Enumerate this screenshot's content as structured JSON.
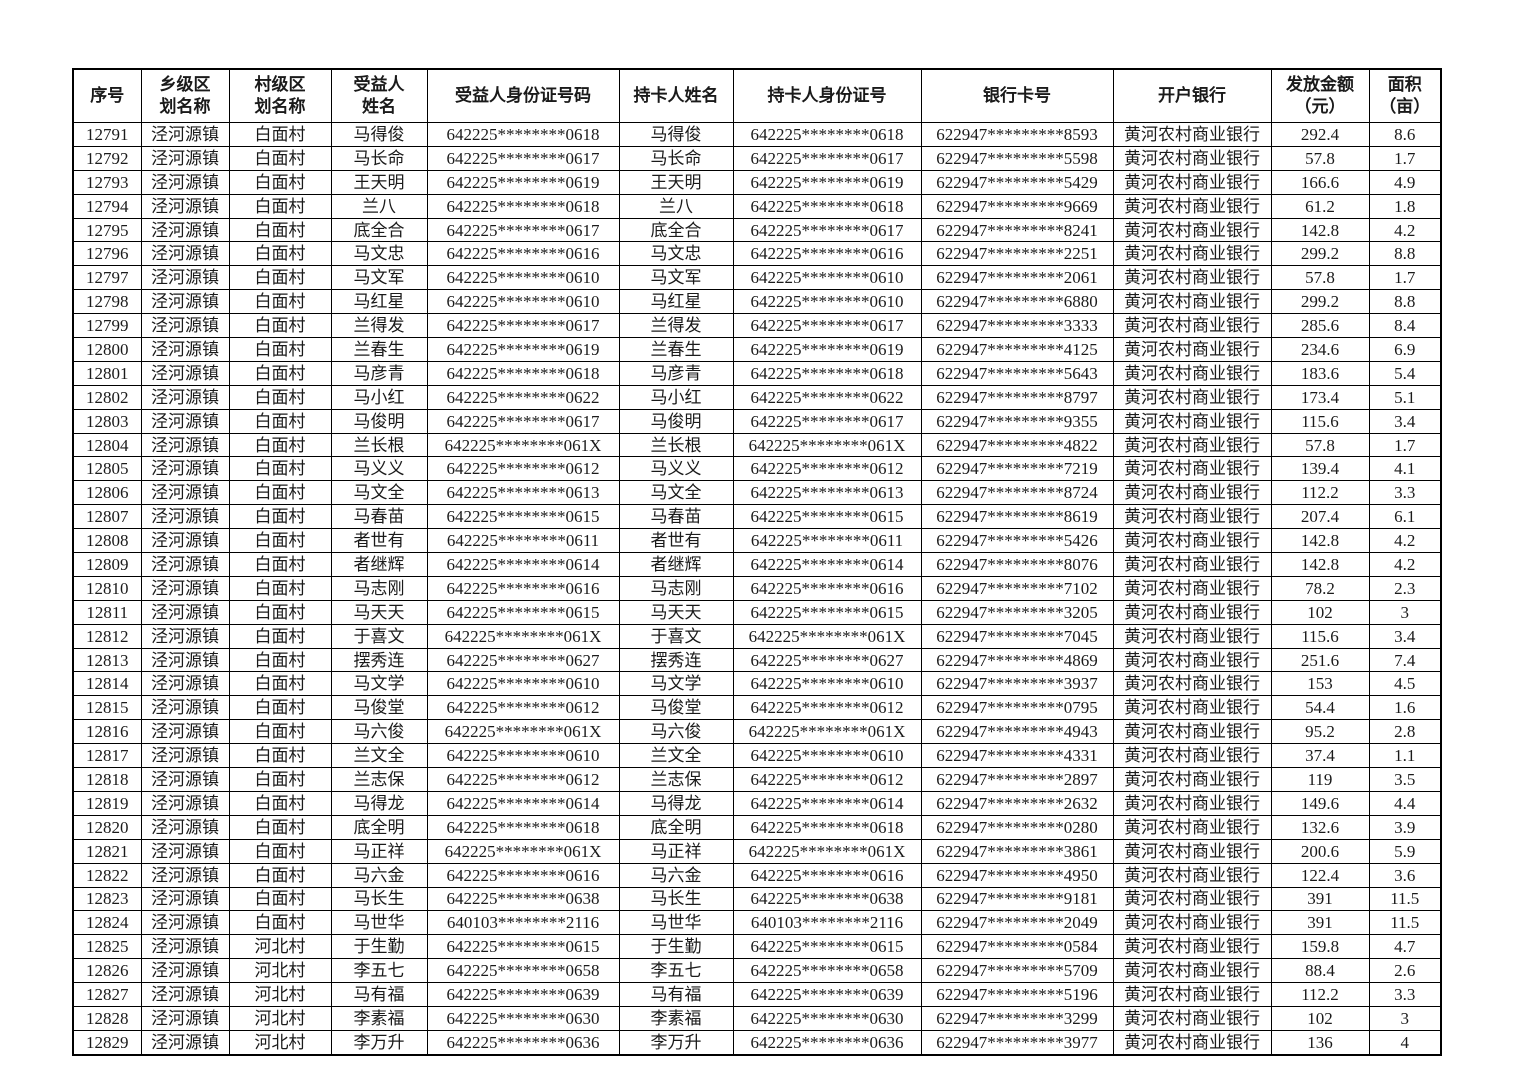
{
  "table": {
    "columns": [
      {
        "key": "serial",
        "label": "序号"
      },
      {
        "key": "township",
        "label": "乡级区\n划名称"
      },
      {
        "key": "village",
        "label": "村级区\n划名称"
      },
      {
        "key": "name",
        "label": "受益人\n姓名"
      },
      {
        "key": "id",
        "label": "受益人身份证号码"
      },
      {
        "key": "cardholder",
        "label": "持卡人姓名"
      },
      {
        "key": "cardholder_id",
        "label": "持卡人身份证号"
      },
      {
        "key": "card_number",
        "label": "银行卡号"
      },
      {
        "key": "bank",
        "label": "开户银行"
      },
      {
        "key": "amount",
        "label": "发放金额\n（元）"
      },
      {
        "key": "area",
        "label": "面积\n（亩）"
      }
    ],
    "rows": [
      [
        "12791",
        "泾河源镇",
        "白面村",
        "马得俊",
        "642225********0618",
        "马得俊",
        "642225********0618",
        "622947*********8593",
        "黄河农村商业银行",
        "292.4",
        "8.6"
      ],
      [
        "12792",
        "泾河源镇",
        "白面村",
        "马长命",
        "642225********0617",
        "马长命",
        "642225********0617",
        "622947*********5598",
        "黄河农村商业银行",
        "57.8",
        "1.7"
      ],
      [
        "12793",
        "泾河源镇",
        "白面村",
        "王天明",
        "642225********0619",
        "王天明",
        "642225********0619",
        "622947*********5429",
        "黄河农村商业银行",
        "166.6",
        "4.9"
      ],
      [
        "12794",
        "泾河源镇",
        "白面村",
        "兰八",
        "642225********0618",
        "兰八",
        "642225********0618",
        "622947*********9669",
        "黄河农村商业银行",
        "61.2",
        "1.8"
      ],
      [
        "12795",
        "泾河源镇",
        "白面村",
        "底全合",
        "642225********0617",
        "底全合",
        "642225********0617",
        "622947*********8241",
        "黄河农村商业银行",
        "142.8",
        "4.2"
      ],
      [
        "12796",
        "泾河源镇",
        "白面村",
        "马文忠",
        "642225********0616",
        "马文忠",
        "642225********0616",
        "622947*********2251",
        "黄河农村商业银行",
        "299.2",
        "8.8"
      ],
      [
        "12797",
        "泾河源镇",
        "白面村",
        "马文军",
        "642225********0610",
        "马文军",
        "642225********0610",
        "622947*********2061",
        "黄河农村商业银行",
        "57.8",
        "1.7"
      ],
      [
        "12798",
        "泾河源镇",
        "白面村",
        "马红星",
        "642225********0610",
        "马红星",
        "642225********0610",
        "622947*********6880",
        "黄河农村商业银行",
        "299.2",
        "8.8"
      ],
      [
        "12799",
        "泾河源镇",
        "白面村",
        "兰得发",
        "642225********0617",
        "兰得发",
        "642225********0617",
        "622947*********3333",
        "黄河农村商业银行",
        "285.6",
        "8.4"
      ],
      [
        "12800",
        "泾河源镇",
        "白面村",
        "兰春生",
        "642225********0619",
        "兰春生",
        "642225********0619",
        "622947*********4125",
        "黄河农村商业银行",
        "234.6",
        "6.9"
      ],
      [
        "12801",
        "泾河源镇",
        "白面村",
        "马彦青",
        "642225********0618",
        "马彦青",
        "642225********0618",
        "622947*********5643",
        "黄河农村商业银行",
        "183.6",
        "5.4"
      ],
      [
        "12802",
        "泾河源镇",
        "白面村",
        "马小红",
        "642225********0622",
        "马小红",
        "642225********0622",
        "622947*********8797",
        "黄河农村商业银行",
        "173.4",
        "5.1"
      ],
      [
        "12803",
        "泾河源镇",
        "白面村",
        "马俊明",
        "642225********0617",
        "马俊明",
        "642225********0617",
        "622947*********9355",
        "黄河农村商业银行",
        "115.6",
        "3.4"
      ],
      [
        "12804",
        "泾河源镇",
        "白面村",
        "兰长根",
        "642225********061X",
        "兰长根",
        "642225********061X",
        "622947*********4822",
        "黄河农村商业银行",
        "57.8",
        "1.7"
      ],
      [
        "12805",
        "泾河源镇",
        "白面村",
        "马义义",
        "642225********0612",
        "马义义",
        "642225********0612",
        "622947*********7219",
        "黄河农村商业银行",
        "139.4",
        "4.1"
      ],
      [
        "12806",
        "泾河源镇",
        "白面村",
        "马文全",
        "642225********0613",
        "马文全",
        "642225********0613",
        "622947*********8724",
        "黄河农村商业银行",
        "112.2",
        "3.3"
      ],
      [
        "12807",
        "泾河源镇",
        "白面村",
        "马春苗",
        "642225********0615",
        "马春苗",
        "642225********0615",
        "622947*********8619",
        "黄河农村商业银行",
        "207.4",
        "6.1"
      ],
      [
        "12808",
        "泾河源镇",
        "白面村",
        "者世有",
        "642225********0611",
        "者世有",
        "642225********0611",
        "622947*********5426",
        "黄河农村商业银行",
        "142.8",
        "4.2"
      ],
      [
        "12809",
        "泾河源镇",
        "白面村",
        "者继辉",
        "642225********0614",
        "者继辉",
        "642225********0614",
        "622947*********8076",
        "黄河农村商业银行",
        "142.8",
        "4.2"
      ],
      [
        "12810",
        "泾河源镇",
        "白面村",
        "马志刚",
        "642225********0616",
        "马志刚",
        "642225********0616",
        "622947*********7102",
        "黄河农村商业银行",
        "78.2",
        "2.3"
      ],
      [
        "12811",
        "泾河源镇",
        "白面村",
        "马天天",
        "642225********0615",
        "马天天",
        "642225********0615",
        "622947*********3205",
        "黄河农村商业银行",
        "102",
        "3"
      ],
      [
        "12812",
        "泾河源镇",
        "白面村",
        "于喜文",
        "642225********061X",
        "于喜文",
        "642225********061X",
        "622947*********7045",
        "黄河农村商业银行",
        "115.6",
        "3.4"
      ],
      [
        "12813",
        "泾河源镇",
        "白面村",
        "摆秀连",
        "642225********0627",
        "摆秀连",
        "642225********0627",
        "622947*********4869",
        "黄河农村商业银行",
        "251.6",
        "7.4"
      ],
      [
        "12814",
        "泾河源镇",
        "白面村",
        "马文学",
        "642225********0610",
        "马文学",
        "642225********0610",
        "622947*********3937",
        "黄河农村商业银行",
        "153",
        "4.5"
      ],
      [
        "12815",
        "泾河源镇",
        "白面村",
        "马俊堂",
        "642225********0612",
        "马俊堂",
        "642225********0612",
        "622947*********0795",
        "黄河农村商业银行",
        "54.4",
        "1.6"
      ],
      [
        "12816",
        "泾河源镇",
        "白面村",
        "马六俊",
        "642225********061X",
        "马六俊",
        "642225********061X",
        "622947*********4943",
        "黄河农村商业银行",
        "95.2",
        "2.8"
      ],
      [
        "12817",
        "泾河源镇",
        "白面村",
        "兰文全",
        "642225********0610",
        "兰文全",
        "642225********0610",
        "622947*********4331",
        "黄河农村商业银行",
        "37.4",
        "1.1"
      ],
      [
        "12818",
        "泾河源镇",
        "白面村",
        "兰志保",
        "642225********0612",
        "兰志保",
        "642225********0612",
        "622947*********2897",
        "黄河农村商业银行",
        "119",
        "3.5"
      ],
      [
        "12819",
        "泾河源镇",
        "白面村",
        "马得龙",
        "642225********0614",
        "马得龙",
        "642225********0614",
        "622947*********2632",
        "黄河农村商业银行",
        "149.6",
        "4.4"
      ],
      [
        "12820",
        "泾河源镇",
        "白面村",
        "底全明",
        "642225********0618",
        "底全明",
        "642225********0618",
        "622947*********0280",
        "黄河农村商业银行",
        "132.6",
        "3.9"
      ],
      [
        "12821",
        "泾河源镇",
        "白面村",
        "马正祥",
        "642225********061X",
        "马正祥",
        "642225********061X",
        "622947*********3861",
        "黄河农村商业银行",
        "200.6",
        "5.9"
      ],
      [
        "12822",
        "泾河源镇",
        "白面村",
        "马六金",
        "642225********0616",
        "马六金",
        "642225********0616",
        "622947*********4950",
        "黄河农村商业银行",
        "122.4",
        "3.6"
      ],
      [
        "12823",
        "泾河源镇",
        "白面村",
        "马长生",
        "642225********0638",
        "马长生",
        "642225********0638",
        "622947*********9181",
        "黄河农村商业银行",
        "391",
        "11.5"
      ],
      [
        "12824",
        "泾河源镇",
        "白面村",
        "马世华",
        "640103********2116",
        "马世华",
        "640103********2116",
        "622947*********2049",
        "黄河农村商业银行",
        "391",
        "11.5"
      ],
      [
        "12825",
        "泾河源镇",
        "河北村",
        "于生勤",
        "642225********0615",
        "于生勤",
        "642225********0615",
        "622947*********0584",
        "黄河农村商业银行",
        "159.8",
        "4.7"
      ],
      [
        "12826",
        "泾河源镇",
        "河北村",
        "李五七",
        "642225********0658",
        "李五七",
        "642225********0658",
        "622947*********5709",
        "黄河农村商业银行",
        "88.4",
        "2.6"
      ],
      [
        "12827",
        "泾河源镇",
        "河北村",
        "马有福",
        "642225********0639",
        "马有福",
        "642225********0639",
        "622947*********5196",
        "黄河农村商业银行",
        "112.2",
        "3.3"
      ],
      [
        "12828",
        "泾河源镇",
        "河北村",
        "李素福",
        "642225********0630",
        "李素福",
        "642225********0630",
        "622947*********3299",
        "黄河农村商业银行",
        "102",
        "3"
      ],
      [
        "12829",
        "泾河源镇",
        "河北村",
        "李万升",
        "642225********0636",
        "李万升",
        "642225********0636",
        "622947*********3977",
        "黄河农村商业银行",
        "136",
        "4"
      ]
    ]
  }
}
